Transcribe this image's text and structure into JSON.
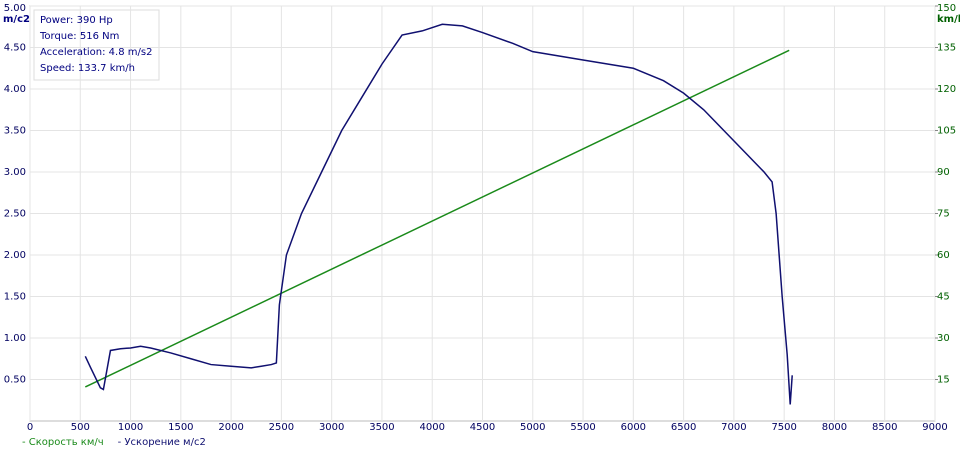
{
  "chart_data": {
    "type": "line",
    "info": [
      "Power: 390 Hp",
      "Torque: 516 Nm",
      "Acceleration: 4.8 m/s2",
      "Speed: 133.7 km/h"
    ],
    "y_label": "m/c2",
    "y2_label": "km/h",
    "xlim": [
      0,
      9000
    ],
    "xticks": [
      0,
      500,
      1000,
      1500,
      2000,
      2500,
      3000,
      3500,
      4000,
      4500,
      5000,
      5500,
      6000,
      6500,
      7000,
      7500,
      8000,
      8500,
      9000
    ],
    "ylim": [
      0,
      5
    ],
    "yticks": [
      {
        "value": 0.5,
        "label": "0.50"
      },
      {
        "value": 1,
        "label": "1.00"
      },
      {
        "value": 1.5,
        "label": "1.50"
      },
      {
        "value": 2,
        "label": "2.00"
      },
      {
        "value": 2.5,
        "label": "2.50"
      },
      {
        "value": 3,
        "label": "3.00"
      },
      {
        "value": 3.5,
        "label": "3.50"
      },
      {
        "value": 4,
        "label": "4.00"
      },
      {
        "value": 4.5,
        "label": "4.50"
      },
      {
        "value": 5,
        "label": "5.00"
      }
    ],
    "y2lim": [
      0,
      150
    ],
    "y2ticks": [
      15,
      30,
      45,
      60,
      75,
      90,
      105,
      120,
      135,
      150
    ],
    "grid": true,
    "series": [
      {
        "name": "- Скорость км/ч",
        "color": "#1a8a1a",
        "axis": "y2",
        "x": [
          550,
          7550
        ],
        "values": [
          12.3,
          134
        ]
      },
      {
        "name": "- Ускорение м/с2",
        "color": "#101070",
        "x": [
          550,
          600,
          700,
          730,
          800,
          900,
          1000,
          1100,
          1200,
          1400,
          1600,
          1800,
          2000,
          2200,
          2300,
          2400,
          2450,
          2480,
          2550,
          2700,
          2900,
          3100,
          3300,
          3500,
          3700,
          3900,
          4100,
          4300,
          4500,
          4800,
          5000,
          5500,
          6000,
          6300,
          6500,
          6700,
          6900,
          7100,
          7300,
          7380,
          7420,
          7480,
          7530,
          7560,
          7580
        ],
        "values": [
          0.78,
          0.65,
          0.4,
          0.38,
          0.85,
          0.87,
          0.88,
          0.9,
          0.88,
          0.82,
          0.75,
          0.68,
          0.66,
          0.64,
          0.66,
          0.68,
          0.7,
          1.4,
          2.0,
          2.5,
          3.0,
          3.5,
          3.9,
          4.3,
          4.65,
          4.7,
          4.78,
          4.76,
          4.68,
          4.55,
          4.45,
          4.35,
          4.25,
          4.1,
          3.95,
          3.75,
          3.5,
          3.25,
          3.0,
          2.88,
          2.5,
          1.5,
          0.8,
          0.2,
          0.55
        ]
      }
    ]
  }
}
